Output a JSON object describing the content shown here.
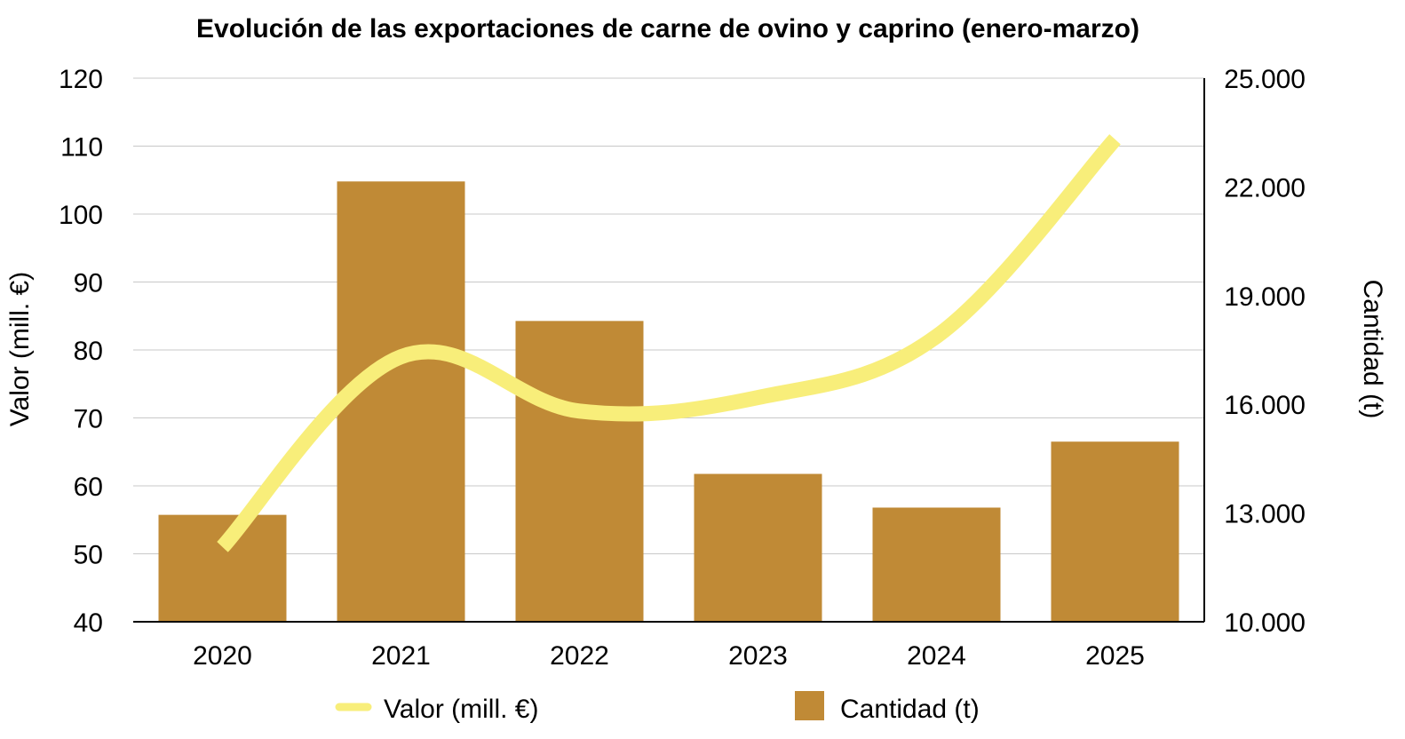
{
  "chart_data": {
    "type": "bar",
    "title": "Evolución de las exportaciones de carne de ovino y caprino (enero-marzo)",
    "categories": [
      "2020",
      "2021",
      "2022",
      "2023",
      "2024",
      "2025"
    ],
    "series": [
      {
        "name": "Cantidad (t)",
        "kind": "bar",
        "axis": "right",
        "color": "#C08A36",
        "values": [
          12950,
          22150,
          18300,
          14080,
          13150,
          14970
        ]
      },
      {
        "name": "Valor (mill. €)",
        "kind": "line",
        "axis": "left",
        "color": "#F8EE7A",
        "values": [
          51,
          79,
          71,
          73,
          82,
          111
        ]
      }
    ],
    "y_left": {
      "label": "Valor (mill. €)",
      "min": 40,
      "max": 120,
      "ticks": [
        "40",
        "50",
        "60",
        "70",
        "80",
        "90",
        "100",
        "110",
        "120"
      ]
    },
    "y_right": {
      "label": "Cantidad (t)",
      "min": 10000,
      "max": 25000,
      "ticks": [
        "10.000",
        "13.000",
        "16.000",
        "19.000",
        "22.000",
        "25.000"
      ]
    },
    "grid": true,
    "legend_position": "bottom"
  }
}
